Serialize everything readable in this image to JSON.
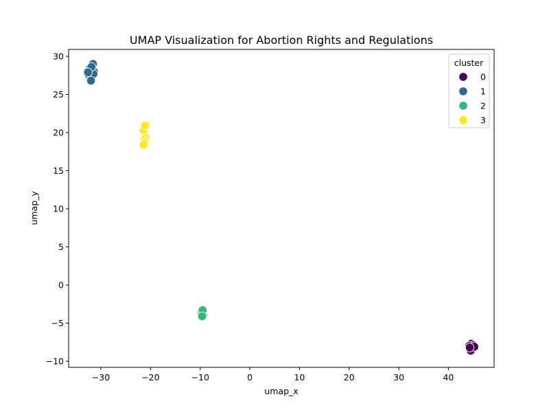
{
  "chart_data": {
    "type": "scatter",
    "title": "UMAP Visualization for Abortion Rights and Regulations",
    "xlabel": "umap_x",
    "ylabel": "umap_y",
    "xlim": [
      -36.5,
      49.2
    ],
    "ylim": [
      -10.8,
      30.9
    ],
    "xticks": [
      -30,
      -20,
      -10,
      0,
      10,
      20,
      30,
      40
    ],
    "yticks": [
      -10,
      -5,
      0,
      5,
      10,
      15,
      20,
      25,
      30
    ],
    "xtick_labels": [
      "−30",
      "−20",
      "−10",
      "0",
      "10",
      "20",
      "30",
      "40"
    ],
    "ytick_labels": [
      "−10",
      "−5",
      "0",
      "5",
      "10",
      "15",
      "20",
      "25",
      "30"
    ],
    "grid": false,
    "legend": {
      "title": "cluster",
      "position": "top-right"
    },
    "series": [
      {
        "name": "0",
        "color": "#440154",
        "points": [
          [
            44.6,
            -7.7
          ],
          [
            45.0,
            -7.9
          ],
          [
            44.2,
            -8.0
          ],
          [
            44.8,
            -8.3
          ],
          [
            44.5,
            -8.6
          ],
          [
            45.2,
            -8.1
          ],
          [
            44.3,
            -8.2
          ]
        ]
      },
      {
        "name": "1",
        "color": "#31688e",
        "points": [
          [
            -31.6,
            29.0
          ],
          [
            -32.3,
            28.4
          ],
          [
            -31.4,
            28.0
          ],
          [
            -32.5,
            27.6
          ],
          [
            -31.8,
            27.4
          ],
          [
            -32.7,
            28.0
          ],
          [
            -31.5,
            27.7
          ],
          [
            -32.0,
            26.8
          ],
          [
            -31.9,
            28.6
          ],
          [
            -32.6,
            27.9
          ]
        ]
      },
      {
        "name": "2",
        "color": "#35b779",
        "points": [
          [
            -9.8,
            -3.6
          ],
          [
            -9.4,
            -4.0
          ],
          [
            -9.7,
            -3.8
          ],
          [
            -9.5,
            -3.3
          ],
          [
            -9.6,
            -4.1
          ]
        ]
      },
      {
        "name": "3",
        "color": "#fde725",
        "points": [
          [
            -20.9,
            21.0
          ],
          [
            -21.2,
            20.7
          ],
          [
            -21.4,
            20.3
          ],
          [
            -21.0,
            19.3
          ],
          [
            -21.3,
            19.0
          ],
          [
            -21.2,
            18.7
          ],
          [
            -21.4,
            18.4
          ],
          [
            -21.1,
            20.9
          ]
        ]
      }
    ]
  }
}
